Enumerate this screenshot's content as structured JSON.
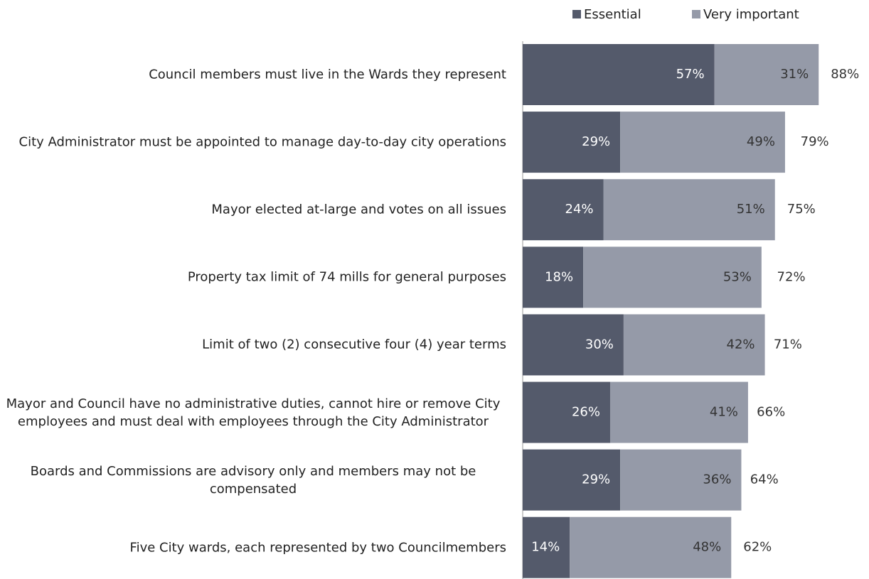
{
  "chart_data": {
    "type": "stacked_barh",
    "categories": [
      "Council members must live in the Wards they represent",
      "City Administrator must be appointed to manage day-to-day city operations",
      "Mayor elected at-large and votes on all issues",
      "Property tax limit of 74 mills for general purposes",
      "Limit of two (2) consecutive four (4) year terms",
      "Mayor and Council have no administrative duties, cannot hire or remove City employees and must deal with employees through the City Administrator",
      "Boards and Commissions are advisory only and members may not be compensated",
      "Five City wards, each represented by two Councilmembers"
    ],
    "series": [
      {
        "name": "Essential",
        "color": "#545a6b",
        "values": [
          57,
          29,
          24,
          18,
          30,
          26,
          29,
          14
        ],
        "value_labels": [
          "57%",
          "29%",
          "24%",
          "18%",
          "30%",
          "26%",
          "29%",
          "14%"
        ]
      },
      {
        "name": "Very important",
        "color": "#959aa8",
        "values": [
          31,
          49,
          51,
          53,
          42,
          41,
          36,
          48
        ],
        "value_labels": [
          "31%",
          "49%",
          "51%",
          "53%",
          "42%",
          "41%",
          "36%",
          "48%"
        ]
      }
    ],
    "totals": [
      88,
      79,
      75,
      72,
      71,
      66,
      64,
      62
    ],
    "total_labels": [
      "88%",
      "79%",
      "75%",
      "72%",
      "71%",
      "66%",
      "64%",
      "62%"
    ],
    "legend": "top-right"
  }
}
